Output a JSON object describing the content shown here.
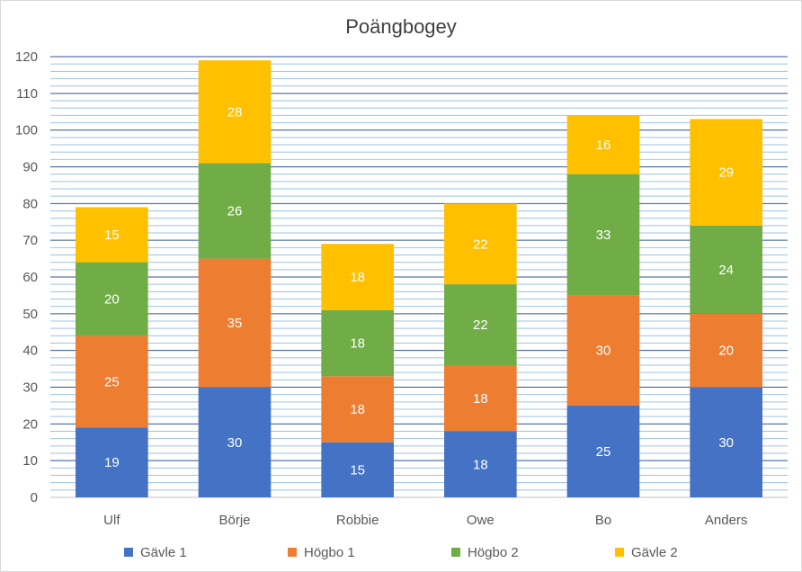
{
  "chart_data": {
    "type": "bar",
    "stacked": true,
    "title": "Poängbogey",
    "xlabel": "",
    "ylabel": "",
    "ylim": [
      0,
      120
    ],
    "major_tick_step": 10,
    "minor_gridlines_per_major": 4,
    "grid": true,
    "legend_position": "bottom",
    "categories": [
      "Ulf",
      "Börje",
      "Robbie",
      "Owe",
      "Bo",
      "Anders"
    ],
    "series": [
      {
        "name": "Gävle 1",
        "color": "#4472C4",
        "values": [
          19,
          30,
          15,
          18,
          25,
          30
        ]
      },
      {
        "name": "Högbo 1",
        "color": "#ED7D31",
        "values": [
          25,
          35,
          18,
          18,
          30,
          20
        ]
      },
      {
        "name": "Högbo 2",
        "color": "#70AD47",
        "values": [
          20,
          26,
          18,
          22,
          33,
          24
        ]
      },
      {
        "name": "Gävle 2",
        "color": "#FFC000",
        "values": [
          15,
          28,
          18,
          22,
          16,
          29
        ]
      }
    ],
    "colors": {
      "major_grid": "#2F5597",
      "minor_grid": "#9DC3E6",
      "axis": "#bfbfbf",
      "label": "#ffffff"
    }
  }
}
